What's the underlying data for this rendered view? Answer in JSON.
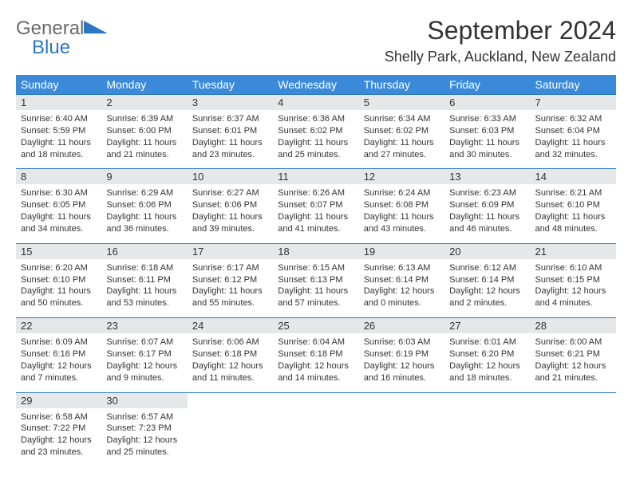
{
  "brand": {
    "line1": "General",
    "line2": "Blue"
  },
  "title": "September 2024",
  "location": "Shelly Park, Auckland, New Zealand",
  "weekdays": [
    "Sunday",
    "Monday",
    "Tuesday",
    "Wednesday",
    "Thursday",
    "Friday",
    "Saturday"
  ],
  "colors": {
    "header_bg": "#3b8ad9",
    "header_text": "#ffffff",
    "daynum_bg": "#e5e7e9",
    "border": "#2b78c2",
    "body_text": "#333333",
    "logo_gray": "#6b6b6b",
    "logo_blue": "#2b78c2",
    "page_bg": "#ffffff"
  },
  "typography": {
    "title_fontsize": 32,
    "location_fontsize": 18,
    "weekday_fontsize": 14,
    "daynum_fontsize": 13,
    "body_fontsize": 11,
    "font_family": "Arial"
  },
  "weeks": [
    [
      {
        "num": "1",
        "sunrise": "Sunrise: 6:40 AM",
        "sunset": "Sunset: 5:59 PM",
        "day1": "Daylight: 11 hours",
        "day2": "and 18 minutes."
      },
      {
        "num": "2",
        "sunrise": "Sunrise: 6:39 AM",
        "sunset": "Sunset: 6:00 PM",
        "day1": "Daylight: 11 hours",
        "day2": "and 21 minutes."
      },
      {
        "num": "3",
        "sunrise": "Sunrise: 6:37 AM",
        "sunset": "Sunset: 6:01 PM",
        "day1": "Daylight: 11 hours",
        "day2": "and 23 minutes."
      },
      {
        "num": "4",
        "sunrise": "Sunrise: 6:36 AM",
        "sunset": "Sunset: 6:02 PM",
        "day1": "Daylight: 11 hours",
        "day2": "and 25 minutes."
      },
      {
        "num": "5",
        "sunrise": "Sunrise: 6:34 AM",
        "sunset": "Sunset: 6:02 PM",
        "day1": "Daylight: 11 hours",
        "day2": "and 27 minutes."
      },
      {
        "num": "6",
        "sunrise": "Sunrise: 6:33 AM",
        "sunset": "Sunset: 6:03 PM",
        "day1": "Daylight: 11 hours",
        "day2": "and 30 minutes."
      },
      {
        "num": "7",
        "sunrise": "Sunrise: 6:32 AM",
        "sunset": "Sunset: 6:04 PM",
        "day1": "Daylight: 11 hours",
        "day2": "and 32 minutes."
      }
    ],
    [
      {
        "num": "8",
        "sunrise": "Sunrise: 6:30 AM",
        "sunset": "Sunset: 6:05 PM",
        "day1": "Daylight: 11 hours",
        "day2": "and 34 minutes."
      },
      {
        "num": "9",
        "sunrise": "Sunrise: 6:29 AM",
        "sunset": "Sunset: 6:06 PM",
        "day1": "Daylight: 11 hours",
        "day2": "and 36 minutes."
      },
      {
        "num": "10",
        "sunrise": "Sunrise: 6:27 AM",
        "sunset": "Sunset: 6:06 PM",
        "day1": "Daylight: 11 hours",
        "day2": "and 39 minutes."
      },
      {
        "num": "11",
        "sunrise": "Sunrise: 6:26 AM",
        "sunset": "Sunset: 6:07 PM",
        "day1": "Daylight: 11 hours",
        "day2": "and 41 minutes."
      },
      {
        "num": "12",
        "sunrise": "Sunrise: 6:24 AM",
        "sunset": "Sunset: 6:08 PM",
        "day1": "Daylight: 11 hours",
        "day2": "and 43 minutes."
      },
      {
        "num": "13",
        "sunrise": "Sunrise: 6:23 AM",
        "sunset": "Sunset: 6:09 PM",
        "day1": "Daylight: 11 hours",
        "day2": "and 46 minutes."
      },
      {
        "num": "14",
        "sunrise": "Sunrise: 6:21 AM",
        "sunset": "Sunset: 6:10 PM",
        "day1": "Daylight: 11 hours",
        "day2": "and 48 minutes."
      }
    ],
    [
      {
        "num": "15",
        "sunrise": "Sunrise: 6:20 AM",
        "sunset": "Sunset: 6:10 PM",
        "day1": "Daylight: 11 hours",
        "day2": "and 50 minutes."
      },
      {
        "num": "16",
        "sunrise": "Sunrise: 6:18 AM",
        "sunset": "Sunset: 6:11 PM",
        "day1": "Daylight: 11 hours",
        "day2": "and 53 minutes."
      },
      {
        "num": "17",
        "sunrise": "Sunrise: 6:17 AM",
        "sunset": "Sunset: 6:12 PM",
        "day1": "Daylight: 11 hours",
        "day2": "and 55 minutes."
      },
      {
        "num": "18",
        "sunrise": "Sunrise: 6:15 AM",
        "sunset": "Sunset: 6:13 PM",
        "day1": "Daylight: 11 hours",
        "day2": "and 57 minutes."
      },
      {
        "num": "19",
        "sunrise": "Sunrise: 6:13 AM",
        "sunset": "Sunset: 6:14 PM",
        "day1": "Daylight: 12 hours",
        "day2": "and 0 minutes."
      },
      {
        "num": "20",
        "sunrise": "Sunrise: 6:12 AM",
        "sunset": "Sunset: 6:14 PM",
        "day1": "Daylight: 12 hours",
        "day2": "and 2 minutes."
      },
      {
        "num": "21",
        "sunrise": "Sunrise: 6:10 AM",
        "sunset": "Sunset: 6:15 PM",
        "day1": "Daylight: 12 hours",
        "day2": "and 4 minutes."
      }
    ],
    [
      {
        "num": "22",
        "sunrise": "Sunrise: 6:09 AM",
        "sunset": "Sunset: 6:16 PM",
        "day1": "Daylight: 12 hours",
        "day2": "and 7 minutes."
      },
      {
        "num": "23",
        "sunrise": "Sunrise: 6:07 AM",
        "sunset": "Sunset: 6:17 PM",
        "day1": "Daylight: 12 hours",
        "day2": "and 9 minutes."
      },
      {
        "num": "24",
        "sunrise": "Sunrise: 6:06 AM",
        "sunset": "Sunset: 6:18 PM",
        "day1": "Daylight: 12 hours",
        "day2": "and 11 minutes."
      },
      {
        "num": "25",
        "sunrise": "Sunrise: 6:04 AM",
        "sunset": "Sunset: 6:18 PM",
        "day1": "Daylight: 12 hours",
        "day2": "and 14 minutes."
      },
      {
        "num": "26",
        "sunrise": "Sunrise: 6:03 AM",
        "sunset": "Sunset: 6:19 PM",
        "day1": "Daylight: 12 hours",
        "day2": "and 16 minutes."
      },
      {
        "num": "27",
        "sunrise": "Sunrise: 6:01 AM",
        "sunset": "Sunset: 6:20 PM",
        "day1": "Daylight: 12 hours",
        "day2": "and 18 minutes."
      },
      {
        "num": "28",
        "sunrise": "Sunrise: 6:00 AM",
        "sunset": "Sunset: 6:21 PM",
        "day1": "Daylight: 12 hours",
        "day2": "and 21 minutes."
      }
    ],
    [
      {
        "num": "29",
        "sunrise": "Sunrise: 6:58 AM",
        "sunset": "Sunset: 7:22 PM",
        "day1": "Daylight: 12 hours",
        "day2": "and 23 minutes."
      },
      {
        "num": "30",
        "sunrise": "Sunrise: 6:57 AM",
        "sunset": "Sunset: 7:23 PM",
        "day1": "Daylight: 12 hours",
        "day2": "and 25 minutes."
      },
      {
        "empty": true
      },
      {
        "empty": true
      },
      {
        "empty": true
      },
      {
        "empty": true
      },
      {
        "empty": true
      }
    ]
  ]
}
